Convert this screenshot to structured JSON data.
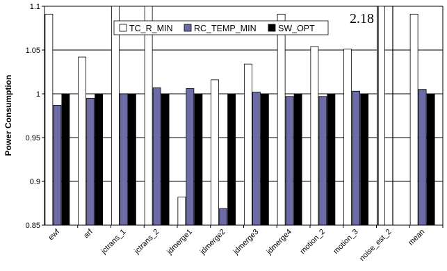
{
  "chart_data": {
    "type": "bar",
    "ylabel": "Power Consumption",
    "ylim": [
      0.85,
      1.1
    ],
    "yticks": [
      "0.85",
      "0.9",
      "0.95",
      "1",
      "1.05",
      "1.1"
    ],
    "categories": [
      "ewf",
      "arf",
      "jctrans_1",
      "jctrans_2",
      "jdmerge1",
      "jdmerge2",
      "jdmerge3",
      "jdmerge4",
      "motion_2",
      "motion_3",
      "noise_est_2",
      "mean"
    ],
    "series": [
      {
        "name": "TC_R_MIN",
        "color": "#ffffff",
        "values": [
          1.091,
          1.042,
          1.1,
          1.1,
          0.882,
          1.016,
          1.034,
          1.091,
          1.054,
          1.051,
          1.1,
          1.091
        ]
      },
      {
        "name": "RC_TEMP_MIN",
        "color": "#6b6ba6",
        "values": [
          0.987,
          0.995,
          1.0,
          1.007,
          1.006,
          0.869,
          1.002,
          0.997,
          0.997,
          1.003,
          0.85,
          1.005
        ]
      },
      {
        "name": "SW_OPT",
        "color": "#000000",
        "values": [
          1.0,
          1.0,
          1.0,
          1.0,
          1.0,
          1.0,
          1.0,
          1.0,
          1.0,
          1.0,
          0.85,
          1.0
        ]
      }
    ],
    "secondary_values": {
      "mean": [
        1.091,
        0.983,
        1.0
      ]
    },
    "annotations": [
      "2.18"
    ],
    "legend": "top-center",
    "grid": true
  }
}
